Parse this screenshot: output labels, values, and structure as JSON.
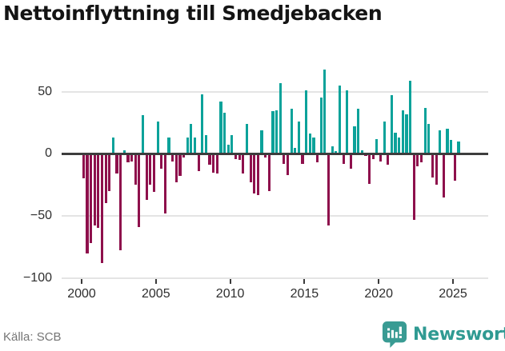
{
  "title": "Nettoinflyttning till Smedjebacken",
  "footer": {
    "source": "Källa: SCB",
    "brand": "Newsworthy"
  },
  "chart_data": {
    "type": "bar",
    "title": "Nettoinflyttning till Smedjebacken",
    "frequency": "quarterly",
    "period_start": "2000 Q1",
    "period_end": "2025 Q2",
    "x_tick_labels": [
      "2000",
      "2005",
      "2010",
      "2015",
      "2020",
      "2025"
    ],
    "y_ticks": [
      50,
      0,
      -50,
      -100
    ],
    "y_tick_labels": [
      "50",
      "0",
      "−50",
      "−100"
    ],
    "ylim": [
      -100,
      75
    ],
    "grid": "horizontal",
    "colors": {
      "positive": "#0ba29a",
      "negative": "#8e104c",
      "zero_axis": "#3d3d3d"
    },
    "values": [
      -20,
      -80,
      -72,
      -58,
      -60,
      -88,
      -40,
      -30,
      13,
      -16,
      -78,
      3,
      -7,
      -6,
      -25,
      -59,
      31,
      -37,
      -25,
      -31,
      26,
      -12,
      -48,
      13,
      -6,
      -23,
      -18,
      -3,
      13,
      24,
      13,
      -14,
      48,
      15,
      -9,
      -15,
      -16,
      42,
      33,
      7,
      15,
      -4,
      -5,
      -16,
      24,
      -23,
      -32,
      -33,
      19,
      -3,
      -30,
      34,
      35,
      57,
      -8,
      -17,
      36,
      5,
      26,
      -8,
      51,
      16,
      13,
      -7,
      45,
      68,
      -58,
      6,
      2,
      55,
      -8,
      51,
      -12,
      22,
      36,
      3,
      -2,
      -24,
      -4,
      12,
      -6,
      26,
      -9,
      47,
      17,
      13,
      35,
      32,
      59,
      -53,
      -10,
      -7,
      37,
      24,
      -19,
      -25,
      19,
      -35,
      20,
      11,
      -22,
      10
    ]
  }
}
